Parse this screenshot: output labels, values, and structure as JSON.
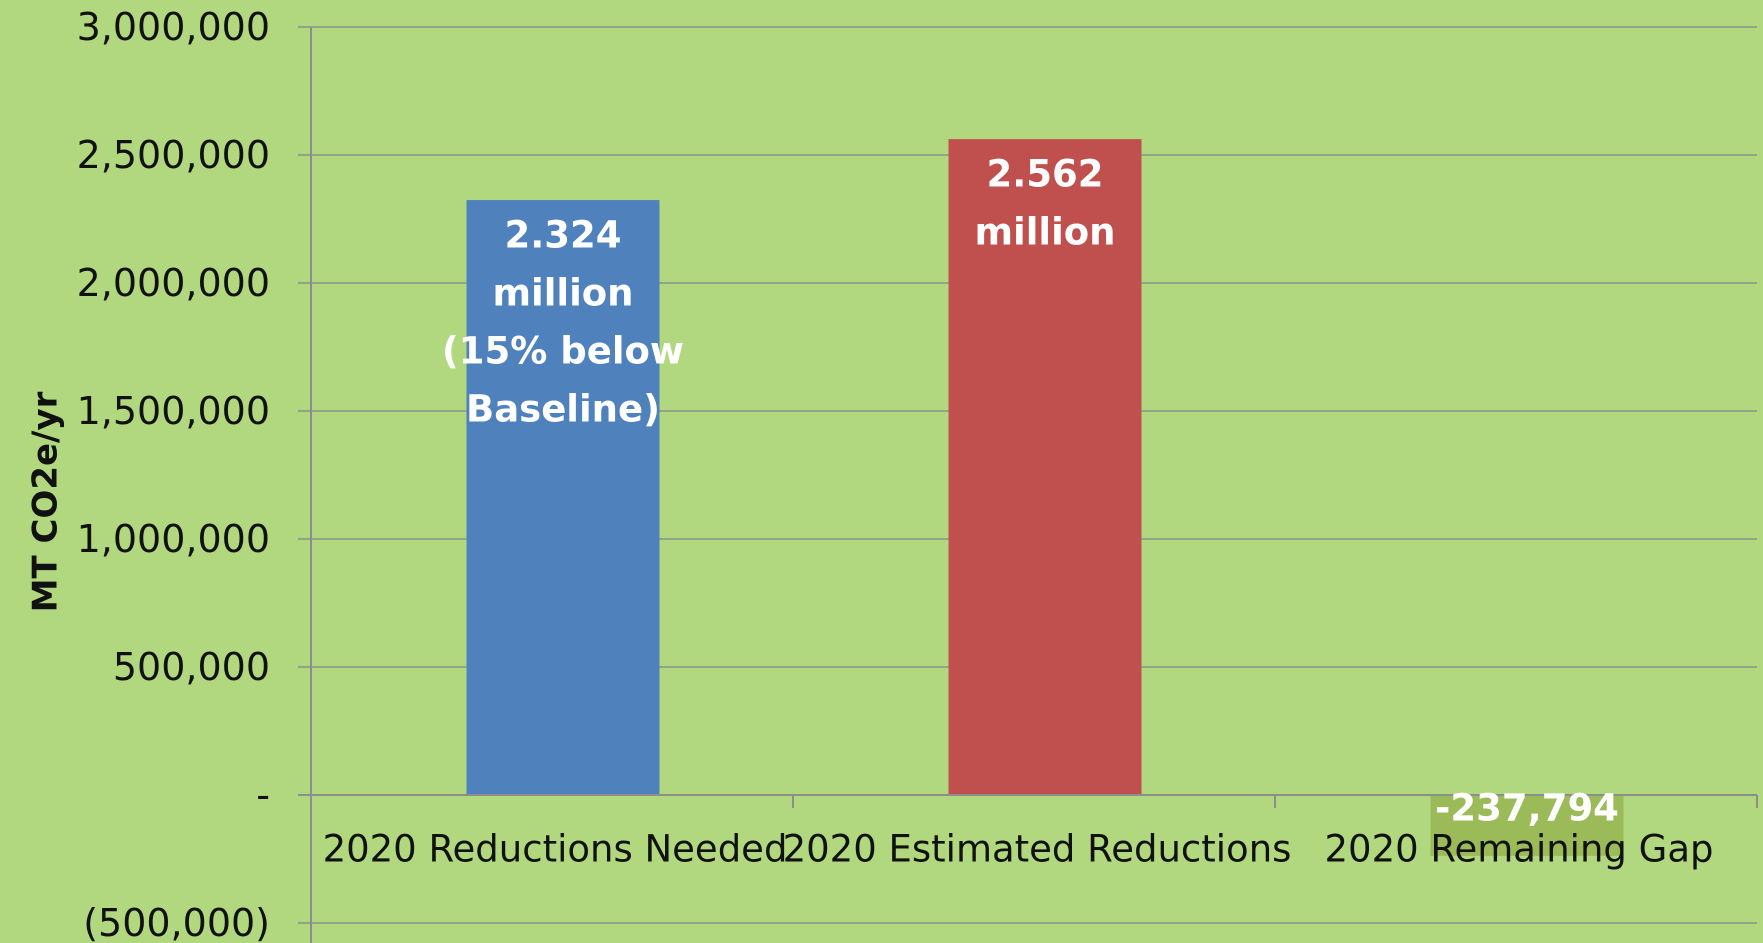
{
  "colors": {
    "background": "#b1d87e",
    "gridline": "#8a8f8a",
    "axis": "#8a8f8a",
    "tick_text": "#111111",
    "data_label_text": "#ffffff"
  },
  "chart_data": {
    "type": "bar",
    "title": "",
    "xlabel": "",
    "ylabel": "MT CO2e/yr",
    "ylim": [
      -500000,
      3000000
    ],
    "y_ticks": [
      {
        "value": 3000000,
        "label": "3,000,000"
      },
      {
        "value": 2500000,
        "label": "2,500,000"
      },
      {
        "value": 2000000,
        "label": "2,000,000"
      },
      {
        "value": 1500000,
        "label": "1,500,000"
      },
      {
        "value": 1000000,
        "label": "1,000,000"
      },
      {
        "value": 500000,
        "label": "500,000"
      },
      {
        "value": 0,
        "label": "-"
      },
      {
        "value": -500000,
        "label": "(500,000)"
      }
    ],
    "grid": true,
    "legend": "none",
    "categories": [
      "2020 Reductions Needed",
      "2020 Estimated Reductions",
      "2020 Remaining Gap"
    ],
    "values": [
      2324000,
      2562000,
      -237794
    ],
    "bar_colors": [
      "#4f81bd",
      "#c0504d",
      "#9bbb59"
    ],
    "data_labels": [
      [
        "2.324",
        "million",
        "(15% below",
        "Baseline)"
      ],
      [
        "2.562",
        "million"
      ],
      [
        "-237,794"
      ]
    ]
  }
}
